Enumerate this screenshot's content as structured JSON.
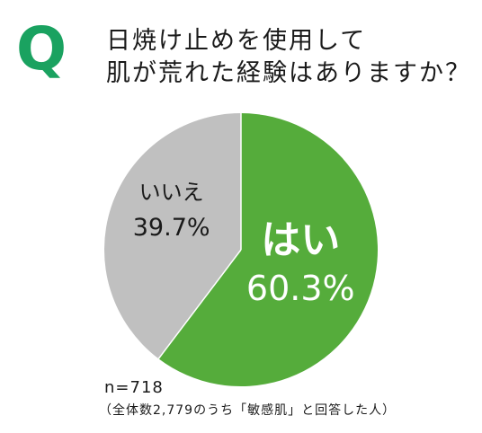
{
  "header": {
    "q_mark": "Q",
    "question_line1": "日焼け止めを使用して",
    "question_line2": "肌が荒れた経験はありますか？"
  },
  "chart_data": {
    "type": "pie",
    "title": "日焼け止めを使用して肌が荒れた経験はありますか？",
    "slices": [
      {
        "label": "はい",
        "value": 60.3,
        "value_label": "60.3%",
        "color": "#55ac3b",
        "text_color": "#ffffff"
      },
      {
        "label": "いいえ",
        "value": 39.7,
        "value_label": "39.7%",
        "color": "#c0c0c0",
        "text_color": "#1a1a1a"
      }
    ],
    "start": "12 o'clock",
    "direction": "clockwise"
  },
  "footer": {
    "sample_size": "n=718",
    "note": "（全体数2,779のうち「敏感肌」と回答した人）"
  }
}
